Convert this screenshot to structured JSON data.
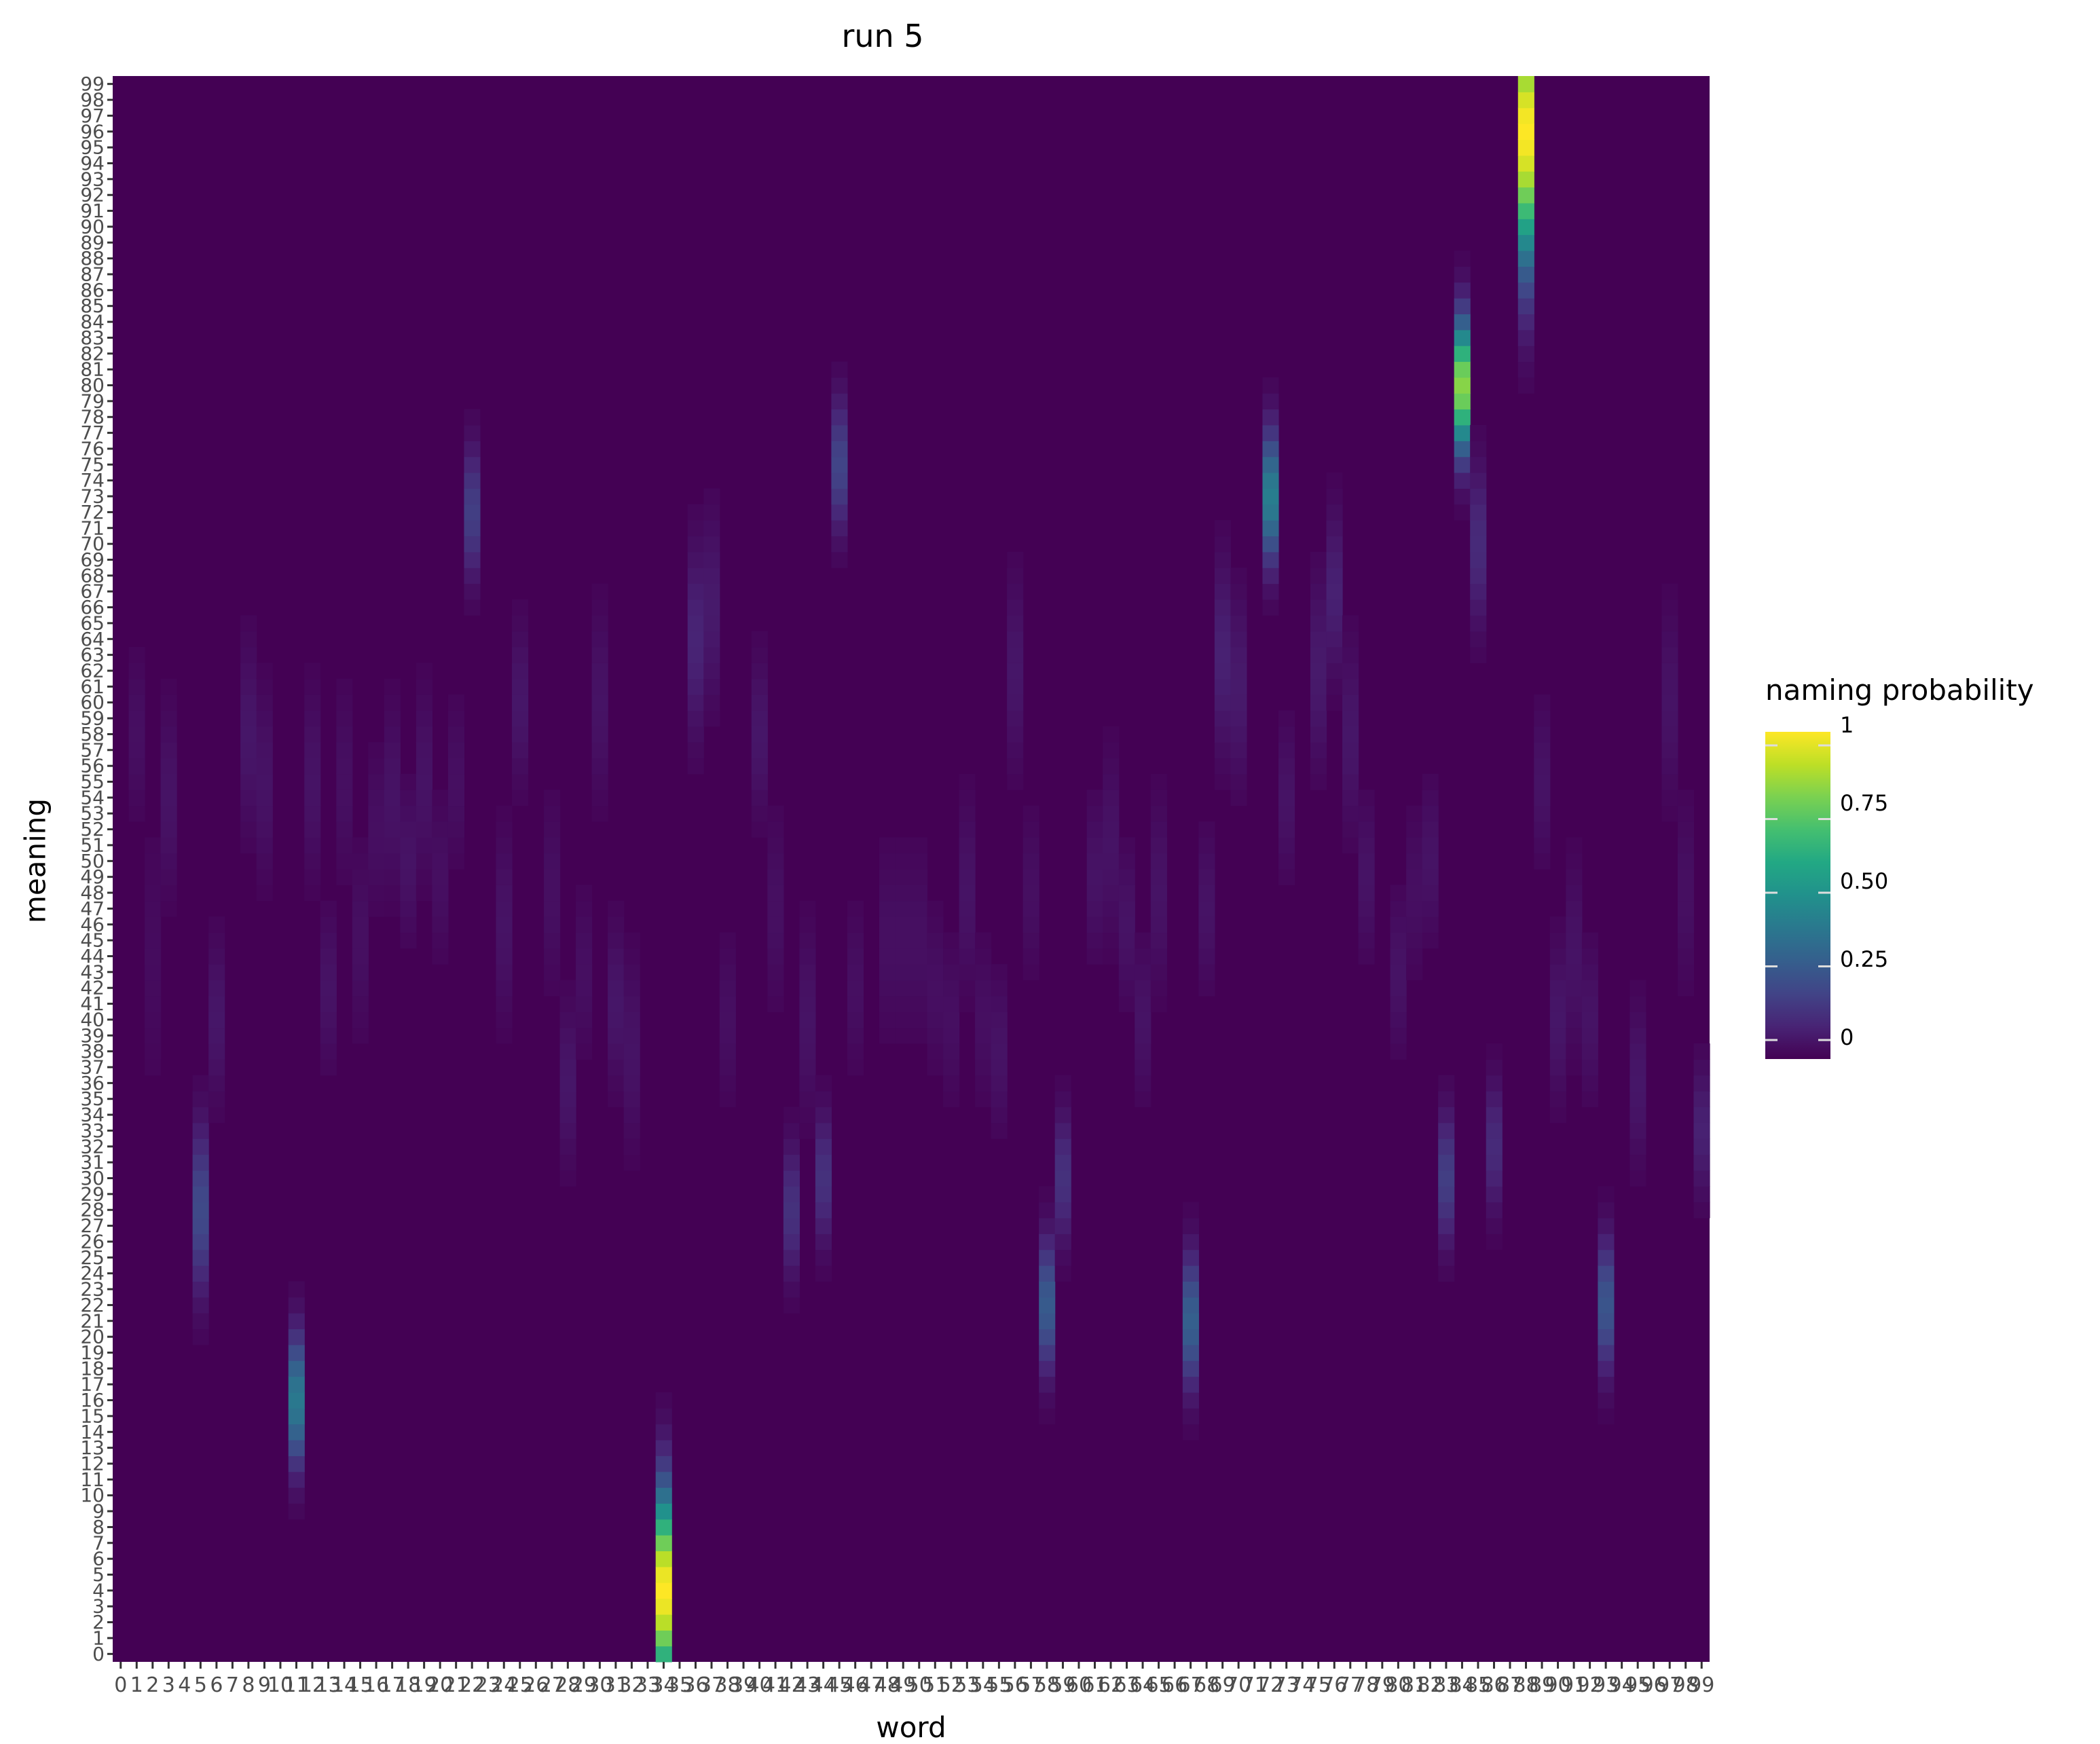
{
  "chart_data": {
    "type": "heatmap",
    "title": "run 5",
    "xlabel": "word",
    "ylabel": "meaning",
    "x_categories_range": [
      0,
      99
    ],
    "y_categories_range": [
      0,
      99
    ],
    "colormap": "viridis",
    "background_value": 0,
    "colors": {
      "low": "#440154",
      "high": "#fde725"
    },
    "legend": {
      "title": "naming probability",
      "placement": "right",
      "ticks": [
        {
          "value": 1,
          "label": "1"
        },
        {
          "value": 0.75,
          "label": "0.75"
        },
        {
          "value": 0.5,
          "label": "0.50"
        },
        {
          "value": 0.25,
          "label": "0.25"
        },
        {
          "value": 0,
          "label": "0"
        }
      ]
    },
    "columns": [
      {
        "word": 1,
        "center": 58,
        "width": 5,
        "peak": 0.04
      },
      {
        "word": 2,
        "center": 44,
        "width": 8,
        "peak": 0.03
      },
      {
        "word": 3,
        "center": 54,
        "width": 6,
        "peak": 0.05
      },
      {
        "word": 5,
        "center": 28,
        "width": 5,
        "peak": 0.22
      },
      {
        "word": 6,
        "center": 40,
        "width": 5,
        "peak": 0.06
      },
      {
        "word": 8,
        "center": 58,
        "width": 6,
        "peak": 0.06
      },
      {
        "word": 9,
        "center": 55,
        "width": 6,
        "peak": 0.05
      },
      {
        "word": 11,
        "center": 16,
        "width": 4,
        "peak": 0.4
      },
      {
        "word": 12,
        "center": 55,
        "width": 6,
        "peak": 0.05
      },
      {
        "word": 13,
        "center": 42,
        "width": 5,
        "peak": 0.05
      },
      {
        "word": 14,
        "center": 55,
        "width": 6,
        "peak": 0.04
      },
      {
        "word": 15,
        "center": 45,
        "width": 6,
        "peak": 0.04
      },
      {
        "word": 16,
        "center": 52,
        "width": 5,
        "peak": 0.04
      },
      {
        "word": 17,
        "center": 54,
        "width": 6,
        "peak": 0.05
      },
      {
        "word": 18,
        "center": 50,
        "width": 5,
        "peak": 0.05
      },
      {
        "word": 19,
        "center": 55,
        "width": 6,
        "peak": 0.05
      },
      {
        "word": 20,
        "center": 49,
        "width": 5,
        "peak": 0.04
      },
      {
        "word": 21,
        "center": 55,
        "width": 5,
        "peak": 0.04
      },
      {
        "word": 22,
        "center": 72,
        "width": 4,
        "peak": 0.18
      },
      {
        "word": 24,
        "center": 46,
        "width": 6,
        "peak": 0.05
      },
      {
        "word": 25,
        "center": 60,
        "width": 5,
        "peak": 0.06
      },
      {
        "word": 27,
        "center": 48,
        "width": 6,
        "peak": 0.04
      },
      {
        "word": 28,
        "center": 36,
        "width": 5,
        "peak": 0.06
      },
      {
        "word": 29,
        "center": 43,
        "width": 5,
        "peak": 0.04
      },
      {
        "word": 30,
        "center": 60,
        "width": 6,
        "peak": 0.05
      },
      {
        "word": 31,
        "center": 41,
        "width": 5,
        "peak": 0.06
      },
      {
        "word": 32,
        "center": 38,
        "width": 6,
        "peak": 0.05
      },
      {
        "word": 34,
        "center": 4,
        "width": 6,
        "peak": 1.0
      },
      {
        "word": 36,
        "center": 64,
        "width": 6,
        "peak": 0.1
      },
      {
        "word": 37,
        "center": 66,
        "width": 6,
        "peak": 0.07
      },
      {
        "word": 38,
        "center": 40,
        "width": 5,
        "peak": 0.04
      },
      {
        "word": 40,
        "center": 58,
        "width": 5,
        "peak": 0.06
      },
      {
        "word": 41,
        "center": 47,
        "width": 6,
        "peak": 0.04
      },
      {
        "word": 42,
        "center": 28,
        "width": 4,
        "peak": 0.14
      },
      {
        "word": 43,
        "center": 40,
        "width": 6,
        "peak": 0.05
      },
      {
        "word": 44,
        "center": 30,
        "width": 4,
        "peak": 0.14
      },
      {
        "word": 45,
        "center": 75,
        "width": 4,
        "peak": 0.2
      },
      {
        "word": 46,
        "center": 42,
        "width": 5,
        "peak": 0.04
      },
      {
        "word": 48,
        "center": 45,
        "width": 6,
        "peak": 0.04
      },
      {
        "word": 49,
        "center": 45,
        "width": 6,
        "peak": 0.04
      },
      {
        "word": 50,
        "center": 45,
        "width": 6,
        "peak": 0.04
      },
      {
        "word": 51,
        "center": 42,
        "width": 5,
        "peak": 0.04
      },
      {
        "word": 52,
        "center": 40,
        "width": 5,
        "peak": 0.04
      },
      {
        "word": 53,
        "center": 48,
        "width": 6,
        "peak": 0.05
      },
      {
        "word": 54,
        "center": 40,
        "width": 5,
        "peak": 0.04
      },
      {
        "word": 55,
        "center": 38,
        "width": 5,
        "peak": 0.05
      },
      {
        "word": 56,
        "center": 62,
        "width": 6,
        "peak": 0.06
      },
      {
        "word": 57,
        "center": 48,
        "width": 5,
        "peak": 0.04
      },
      {
        "word": 58,
        "center": 22,
        "width": 4,
        "peak": 0.28
      },
      {
        "word": 59,
        "center": 30,
        "width": 4,
        "peak": 0.14
      },
      {
        "word": 61,
        "center": 49,
        "width": 5,
        "peak": 0.05
      },
      {
        "word": 62,
        "center": 51,
        "width": 6,
        "peak": 0.05
      },
      {
        "word": 63,
        "center": 46,
        "width": 5,
        "peak": 0.05
      },
      {
        "word": 64,
        "center": 40,
        "width": 5,
        "peak": 0.05
      },
      {
        "word": 65,
        "center": 48,
        "width": 6,
        "peak": 0.05
      },
      {
        "word": 67,
        "center": 21,
        "width": 4,
        "peak": 0.3
      },
      {
        "word": 68,
        "center": 47,
        "width": 5,
        "peak": 0.05
      },
      {
        "word": 69,
        "center": 63,
        "width": 6,
        "peak": 0.09
      },
      {
        "word": 70,
        "center": 61,
        "width": 6,
        "peak": 0.07
      },
      {
        "word": 72,
        "center": 73,
        "width": 4,
        "peak": 0.42
      },
      {
        "word": 73,
        "center": 54,
        "width": 5,
        "peak": 0.05
      },
      {
        "word": 75,
        "center": 62,
        "width": 6,
        "peak": 0.07
      },
      {
        "word": 76,
        "center": 67,
        "width": 5,
        "peak": 0.09
      },
      {
        "word": 77,
        "center": 58,
        "width": 6,
        "peak": 0.06
      },
      {
        "word": 78,
        "center": 49,
        "width": 5,
        "peak": 0.05
      },
      {
        "word": 80,
        "center": 43,
        "width": 5,
        "peak": 0.05
      },
      {
        "word": 81,
        "center": 48,
        "width": 5,
        "peak": 0.04
      },
      {
        "word": 82,
        "center": 50,
        "width": 5,
        "peak": 0.05
      },
      {
        "word": 83,
        "center": 30,
        "width": 4,
        "peak": 0.18
      },
      {
        "word": 84,
        "center": 80,
        "width": 4,
        "peak": 0.82
      },
      {
        "word": 85,
        "center": 70,
        "width": 5,
        "peak": 0.12
      },
      {
        "word": 86,
        "center": 32,
        "width": 4,
        "peak": 0.12
      },
      {
        "word": 88,
        "center": 96,
        "width": 8,
        "peak": 1.0
      },
      {
        "word": 89,
        "center": 55,
        "width": 5,
        "peak": 0.05
      },
      {
        "word": 90,
        "center": 40,
        "width": 5,
        "peak": 0.06
      },
      {
        "word": 91,
        "center": 44,
        "width": 6,
        "peak": 0.05
      },
      {
        "word": 92,
        "center": 40,
        "width": 5,
        "peak": 0.05
      },
      {
        "word": 93,
        "center": 22,
        "width": 4,
        "peak": 0.26
      },
      {
        "word": 95,
        "center": 36,
        "width": 5,
        "peak": 0.06
      },
      {
        "word": 97,
        "center": 60,
        "width": 6,
        "peak": 0.05
      },
      {
        "word": 98,
        "center": 48,
        "width": 6,
        "peak": 0.04
      },
      {
        "word": 99,
        "center": 33,
        "width": 4,
        "peak": 0.09
      }
    ]
  }
}
